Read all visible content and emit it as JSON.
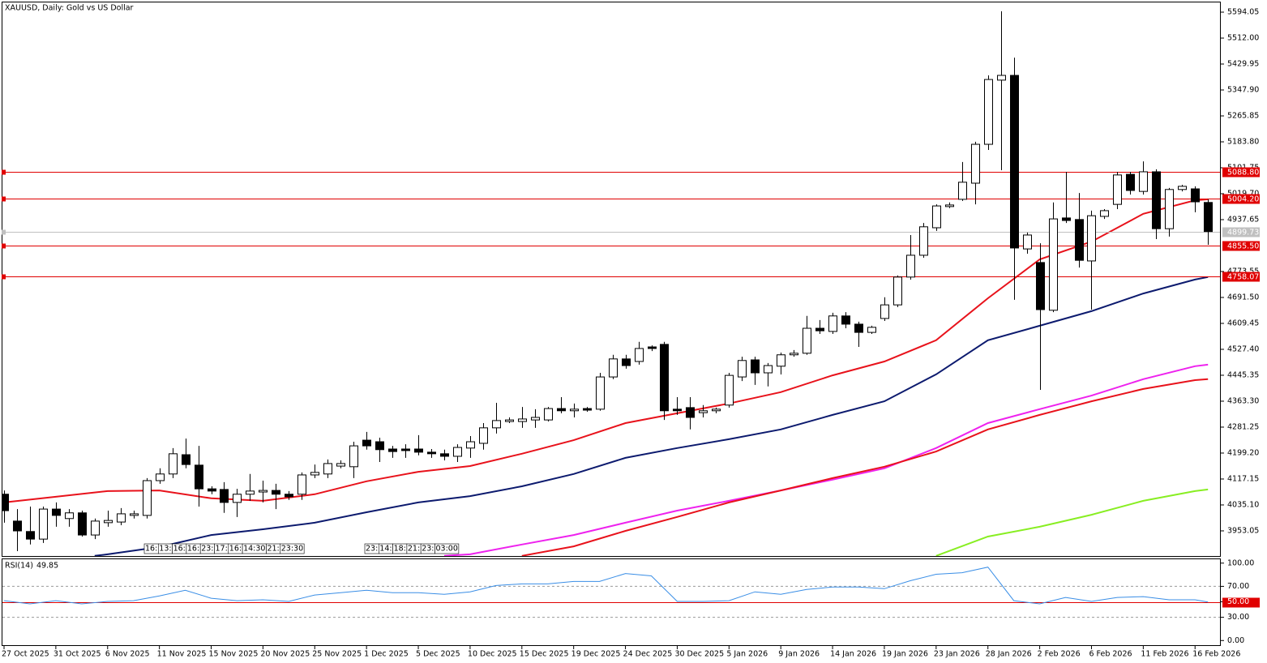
{
  "chart_data": {
    "type": "candlestick",
    "title": "XAUUSD, Daily:  Gold vs US Dollar",
    "categories": [
      "27 Oct 2025",
      null,
      null,
      null,
      "31 Oct 2025",
      null,
      null,
      null,
      "6 Nov 2025",
      null,
      null,
      null,
      "11 Nov 2025",
      null,
      null,
      null,
      "15 Nov 2025",
      null,
      null,
      null,
      "20 Nov 2025",
      null,
      null,
      null,
      "25 Nov 2025",
      null,
      null,
      null,
      "1 Dec 2025",
      null,
      null,
      null,
      "5 Dec 2025",
      null,
      null,
      null,
      "10 Dec 2025",
      null,
      null,
      null,
      "15 Dec 2025",
      null,
      null,
      null,
      "19 Dec 2025",
      null,
      null,
      null,
      "24 Dec 2025",
      null,
      null,
      null,
      "30 Dec 2025",
      null,
      null,
      null,
      "5 Jan 2026",
      null,
      null,
      null,
      "9 Jan 2026",
      null,
      null,
      null,
      "14 Jan 2026",
      null,
      null,
      null,
      "19 Jan 2026",
      null,
      null,
      null,
      "23 Jan 2026",
      null,
      null,
      null,
      "28 Jan 2026",
      null,
      null,
      null,
      "2 Feb 2026",
      null,
      null,
      null,
      "6 Feb 2026",
      null,
      null,
      null,
      "11 Feb 2026",
      null,
      null,
      null,
      "16 Feb 2026",
      null
    ],
    "open": [
      4069,
      3984,
      3951,
      3927,
      4022,
      3992,
      4010,
      3940,
      3979,
      3981,
      4002,
      4002,
      4112,
      4133,
      4194,
      4161,
      4086,
      4084,
      4043,
      4069,
      4076,
      4081,
      4069,
      4069,
      4130,
      4133,
      4158,
      4156,
      4240,
      4235,
      4212,
      4212,
      4212,
      4202,
      4197,
      4189,
      4215,
      4230,
      4279,
      4299,
      4299,
      4304,
      4304,
      4340,
      4333,
      4340,
      4338,
      4440,
      4497,
      4489,
      4535,
      4543,
      4338,
      4343,
      4327,
      4333,
      4351,
      4440,
      4494,
      4453,
      4474,
      4510,
      4515,
      4594,
      4584,
      4633,
      4607,
      4581,
      4625,
      4668,
      4756,
      4825,
      4912,
      4979,
      5002,
      5053,
      5176,
      5379,
      5394,
      4845,
      4802,
      4651,
      4943,
      4938,
      4807,
      4948,
      4986,
      5081,
      5027,
      5089,
      4909,
      5033,
      5035,
      4992
    ],
    "high": [
      4081,
      4022,
      4030,
      4030,
      4043,
      4022,
      4017,
      3992,
      4017,
      4025,
      4017,
      4120,
      4151,
      4215,
      4245,
      4222,
      4094,
      4107,
      4086,
      4133,
      4112,
      4102,
      4079,
      4138,
      4163,
      4179,
      4176,
      4235,
      4266,
      4248,
      4222,
      4227,
      4256,
      4212,
      4210,
      4227,
      4253,
      4294,
      4358,
      4312,
      4345,
      4338,
      4345,
      4376,
      4356,
      4345,
      4453,
      4510,
      4510,
      4551,
      4540,
      4551,
      4376,
      4376,
      4351,
      4343,
      4453,
      4504,
      4504,
      4484,
      4517,
      4525,
      4633,
      4620,
      4643,
      4645,
      4615,
      4602,
      4692,
      4761,
      4889,
      4927,
      4986,
      4992,
      5120,
      5184,
      5394,
      5597,
      5450,
      4897,
      4863,
      4992,
      5089,
      5022,
      4966,
      4971,
      5089,
      5089,
      5122,
      5097,
      5038,
      5048,
      5043,
      5002
    ],
    "low": [
      3979,
      3889,
      3910,
      3915,
      3966,
      3966,
      3935,
      3927,
      3966,
      3971,
      3992,
      3992,
      4102,
      4120,
      4151,
      4030,
      4069,
      4010,
      3997,
      4048,
      4043,
      4022,
      4051,
      4051,
      4120,
      4120,
      4151,
      4120,
      4210,
      4171,
      4184,
      4184,
      4192,
      4184,
      4176,
      4171,
      4184,
      4210,
      4261,
      4294,
      4279,
      4279,
      4299,
      4325,
      4312,
      4330,
      4333,
      4433,
      4466,
      4479,
      4522,
      4304,
      4320,
      4274,
      4312,
      4325,
      4343,
      4427,
      4415,
      4410,
      4448,
      4504,
      4510,
      4576,
      4576,
      4594,
      4535,
      4576,
      4617,
      4661,
      4748,
      4817,
      4902,
      4974,
      4997,
      4986,
      5158,
      5094,
      4684,
      4830,
      4399,
      4645,
      4927,
      4786,
      4653,
      4940,
      4971,
      5017,
      5017,
      4876,
      4884,
      5027,
      4961,
      4858
    ],
    "close": [
      4017,
      3953,
      3927,
      4022,
      4002,
      4010,
      3940,
      3984,
      3986,
      4007,
      4007,
      4112,
      4133,
      4197,
      4163,
      4086,
      4079,
      4043,
      4069,
      4079,
      4081,
      4069,
      4061,
      4130,
      4138,
      4166,
      4166,
      4222,
      4222,
      4210,
      4204,
      4207,
      4202,
      4197,
      4189,
      4217,
      4235,
      4279,
      4302,
      4304,
      4307,
      4312,
      4340,
      4333,
      4338,
      4335,
      4440,
      4497,
      4476,
      4530,
      4530,
      4333,
      4333,
      4312,
      4333,
      4338,
      4445,
      4492,
      4453,
      4476,
      4510,
      4515,
      4594,
      4586,
      4633,
      4607,
      4581,
      4597,
      4668,
      4756,
      4825,
      4915,
      4981,
      4984,
      5056,
      5176,
      5381,
      5394,
      4848,
      4889,
      4653,
      4940,
      4935,
      4809,
      4950,
      4966,
      5079,
      5030,
      5089,
      4909,
      5033,
      5043,
      4994,
      4900
    ],
    "up_color": "#ffffff",
    "down_color": "#000000",
    "lines": [
      {
        "color": "#e8121b",
        "x": [
          0,
          4,
          8,
          12,
          16,
          20,
          24,
          28,
          32,
          36,
          40,
          44,
          48,
          52,
          56,
          60,
          64,
          68,
          72,
          76,
          80,
          84,
          88,
          92,
          93
        ],
        "values": [
          4043,
          4061,
          4079,
          4081,
          4056,
          4048,
          4069,
          4110,
          4140,
          4158,
          4197,
          4240,
          4294,
          4325,
          4356,
          4392,
          4445,
          4489,
          4556,
          4689,
          4812,
          4868,
          4956,
          4999,
          5002
        ]
      },
      {
        "color": "#0c1a6e",
        "x": [
          7,
          8,
          12,
          16,
          20,
          24,
          28,
          32,
          36,
          40,
          44,
          48,
          52,
          56,
          60,
          64,
          68,
          72,
          76,
          80,
          84,
          88,
          92,
          93
        ],
        "values": [
          3874,
          3879,
          3902,
          3940,
          3958,
          3979,
          4012,
          4043,
          4063,
          4094,
          4133,
          4184,
          4215,
          4243,
          4274,
          4320,
          4363,
          4448,
          4556,
          4602,
          4648,
          4704,
          4748,
          4756
        ]
      },
      {
        "color": "#ee22ee",
        "x": [
          34,
          36,
          40,
          44,
          48,
          52,
          56,
          60,
          64,
          68,
          72,
          76,
          80,
          84,
          88,
          92,
          93
        ],
        "values": [
          3874,
          3879,
          3910,
          3940,
          3979,
          4017,
          4048,
          4081,
          4115,
          4151,
          4215,
          4294,
          4338,
          4381,
          4433,
          4474,
          4479
        ]
      },
      {
        "color": "#e8121b",
        "x": [
          40,
          44,
          48,
          52,
          56,
          60,
          64,
          68,
          72,
          76,
          80,
          84,
          88,
          92,
          93
        ],
        "values": [
          3874,
          3904,
          3953,
          3997,
          4043,
          4081,
          4120,
          4156,
          4204,
          4274,
          4320,
          4363,
          4402,
          4430,
          4433
        ]
      },
      {
        "color": "#88ee22",
        "x": [
          72,
          76,
          80,
          84,
          88,
          92,
          93
        ],
        "values": [
          3874,
          3935,
          3966,
          4004,
          4048,
          4079,
          4084
        ]
      }
    ],
    "ylim": [
      3873.5,
      5624.8
    ],
    "yticks": [
      5594.05,
      {
        "value": 5512.0,
        "label": "5512.00"
      },
      5429.95,
      {
        "value": 5347.9,
        "label": "5347.90"
      },
      5265.85,
      {
        "value": 5183.8,
        "label": "5183.80"
      },
      5101.75,
      {
        "value": 5019.7,
        "label": "5019.70"
      },
      4937.65,
      4773.55,
      {
        "value": 4691.5,
        "label": "4691.50"
      },
      4609.45,
      {
        "value": 4527.4,
        "label": "4527.40"
      },
      4445.35,
      {
        "value": 4363.3,
        "label": "4363.30"
      },
      4281.25,
      {
        "value": 4199.2,
        "label": "4199.20"
      },
      4117.15,
      {
        "value": 4035.1,
        "label": "4035.10"
      },
      3953.05
    ],
    "levels": [
      {
        "value": 5088.8,
        "label": "5088.80",
        "color": "#e00000"
      },
      {
        "value": 5004.2,
        "label": "5004.20",
        "color": "#e00000"
      },
      {
        "value": 4899.73,
        "label": "4899.73",
        "color": "#c0c0c0"
      },
      {
        "value": 4855.5,
        "label": "4855.50",
        "color": "#e00000"
      },
      {
        "value": 4758.07,
        "label": "4758.07",
        "color": "#e00000"
      }
    ],
    "separators": [
      [
        "16:",
        "13:",
        "16:",
        "16:",
        "23:",
        "17:",
        "16:",
        "14:30",
        "21:",
        "23:30"
      ],
      [
        "23:",
        "14:",
        "18:",
        "21:",
        "23:",
        "03:00"
      ]
    ],
    "rsi": {
      "label": "RSI(14)",
      "current": 49.85,
      "color": "#3a8ee6",
      "x": [
        0,
        2,
        4,
        6,
        8,
        10,
        12,
        14,
        16,
        18,
        20,
        22,
        24,
        26,
        28,
        30,
        32,
        34,
        36,
        38,
        40,
        42,
        44,
        46,
        48,
        50,
        52,
        54,
        56,
        58,
        60,
        62,
        64,
        66,
        68,
        70,
        72,
        74,
        76,
        78,
        80,
        82,
        84,
        86,
        88,
        90,
        92,
        93
      ],
      "values": [
        51.5,
        47.4,
        51.5,
        47.4,
        50.5,
        51.5,
        57.7,
        64.9,
        54.6,
        51.5,
        52.6,
        50.5,
        58.8,
        61.9,
        64.9,
        61.9,
        61.9,
        59.8,
        62.9,
        71.1,
        73.2,
        73.2,
        76.3,
        76.3,
        86.6,
        83.5,
        50.5,
        50.5,
        51.5,
        62.9,
        59.8,
        66.0,
        69.1,
        69.1,
        67.0,
        77.3,
        85.6,
        87.6,
        94.8,
        51.5,
        47.4,
        55.7,
        50.5,
        55.7,
        56.7,
        52.6,
        52.6,
        49.85
      ],
      "ylim": [
        -6,
        105
      ],
      "yticks": [
        {
          "value": 100,
          "label": "100.00"
        },
        {
          "value": 70,
          "label": "70.00"
        },
        {
          "value": 50,
          "label": "50.00"
        },
        {
          "value": 30,
          "label": "30.00"
        },
        {
          "value": 0,
          "label": "0.00"
        }
      ],
      "dashed": [
        70,
        30
      ],
      "midline": {
        "value": 50,
        "color": "#e00000"
      }
    }
  }
}
